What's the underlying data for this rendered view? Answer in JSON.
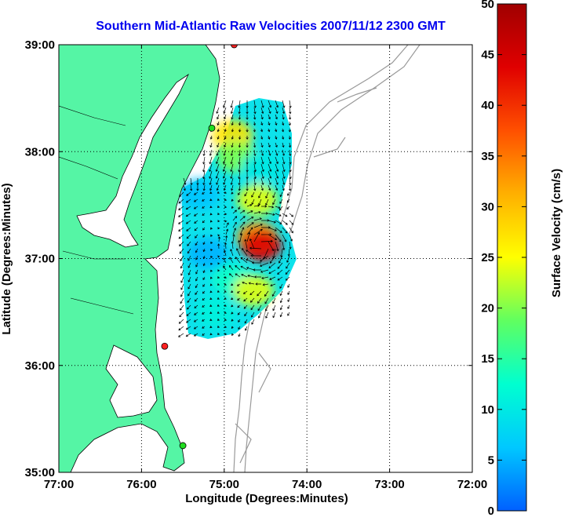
{
  "chart_data": {
    "type": "vector-field-map",
    "title": "Southern Mid-Atlantic Raw Velocities 2007/11/12 2300 GMT",
    "xlabel": "Longitude (Degrees:Minutes)",
    "ylabel": "Latitude (Degrees:Minutes)",
    "x_ticks": [
      "77:00",
      "76:00",
      "75:00",
      "74:00",
      "73:00",
      "72:00"
    ],
    "y_ticks": [
      "39:00",
      "38:00",
      "37:00",
      "36:00",
      "35:00"
    ],
    "xlim": [
      -77,
      -72
    ],
    "ylim": [
      35,
      39
    ],
    "grid": "dotted",
    "colorbar": {
      "label": "Surface Velocity (cm/s)",
      "range": [
        0,
        50
      ],
      "ticks": [
        "50",
        "45",
        "40",
        "35",
        "30",
        "25",
        "20",
        "15",
        "10",
        "5",
        "0"
      ],
      "colors": [
        "#0060ff",
        "#00c8ff",
        "#00ffd0",
        "#60ff60",
        "#ffff00",
        "#ffb000",
        "#ff5000",
        "#e00000",
        "#a00000"
      ]
    },
    "colors": {
      "land": "#55f5a5",
      "land_edge": "#000000",
      "bathymetry": "#999999",
      "title": "#0000ee",
      "station_red": "#ff2020",
      "station_green": "#20dd20"
    },
    "stations": [
      {
        "lon": -74.88,
        "lat": 39.0,
        "color": "red"
      },
      {
        "lon": -75.15,
        "lat": 38.22,
        "color": "green"
      },
      {
        "lon": -75.72,
        "lat": 36.18,
        "color": "red"
      },
      {
        "lon": -75.5,
        "lat": 35.25,
        "color": "green"
      }
    ],
    "speed_patches": [
      {
        "lon": -74.9,
        "lat": 38.15,
        "speed": 27
      },
      {
        "lon": -74.85,
        "lat": 37.95,
        "speed": 20
      },
      {
        "lon": -74.55,
        "lat": 37.85,
        "speed": 10
      },
      {
        "lon": -75.3,
        "lat": 37.6,
        "speed": 6
      },
      {
        "lon": -74.6,
        "lat": 37.55,
        "speed": 24
      },
      {
        "lon": -74.6,
        "lat": 37.2,
        "speed": 33
      },
      {
        "lon": -74.55,
        "lat": 37.12,
        "speed": 44
      },
      {
        "lon": -75.2,
        "lat": 37.05,
        "speed": 5
      },
      {
        "lon": -74.9,
        "lat": 36.8,
        "speed": 13
      },
      {
        "lon": -74.65,
        "lat": 36.7,
        "speed": 24
      },
      {
        "lon": -75.1,
        "lat": 36.5,
        "speed": 11
      }
    ]
  }
}
